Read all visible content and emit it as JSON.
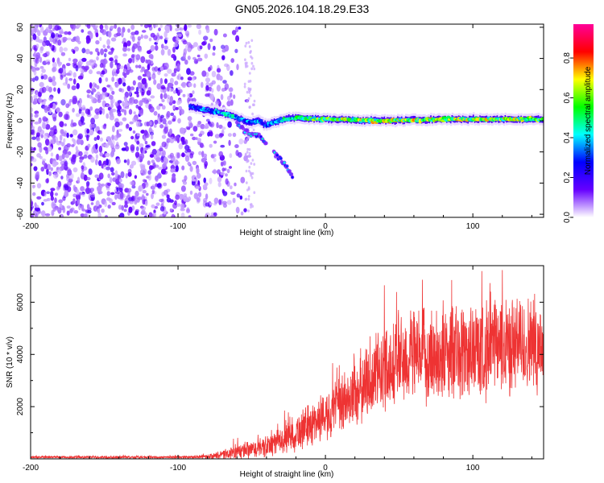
{
  "title": "GN05.2026.104.18.29.E33",
  "chart_data": [
    {
      "type": "heatmap",
      "name": "spectrogram",
      "xlabel": "Height of straight line (km)",
      "ylabel": "Frequency (Hz)",
      "xlim": [
        -200,
        148
      ],
      "ylim": [
        -62,
        62
      ],
      "xticks": [
        -200,
        -100,
        0,
        100
      ],
      "yticks": [
        -60,
        -40,
        -20,
        0,
        20,
        40,
        60
      ],
      "colorbar": {
        "label": "Normalized spectral amplitude",
        "range": [
          0,
          0.97
        ],
        "ticks": [
          0.0,
          0.2,
          0.4,
          0.6,
          0.8
        ],
        "colors": [
          "#ffffff",
          "#6600ff",
          "#0000ff",
          "#00ffff",
          "#00ff00",
          "#ffff00",
          "#ff0000",
          "#ff0099"
        ]
      },
      "regions": [
        {
          "desc": "broadband noise",
          "x": [
            -200,
            -75
          ],
          "y": [
            -60,
            60
          ],
          "amplitude": 0.15
        },
        {
          "desc": "isolated points",
          "x": [
            -55,
            -48
          ],
          "y": [
            -60,
            55
          ],
          "amplitude": 0.05
        }
      ],
      "track": {
        "x": [
          -92,
          -80,
          -70,
          -60,
          -52,
          -45,
          -40,
          -35,
          -28,
          -20,
          0,
          40,
          80,
          120,
          148
        ],
        "y": [
          9,
          7,
          5,
          2,
          -1,
          0,
          -3,
          -1,
          1,
          2,
          1,
          0,
          1,
          1,
          1
        ],
        "amplitude": [
          0.35,
          0.4,
          0.45,
          0.45,
          0.4,
          0.4,
          0.4,
          0.45,
          0.5,
          0.55,
          0.65,
          0.7,
          0.72,
          0.7,
          0.68
        ]
      },
      "branches": [
        {
          "x": [
            -60,
            -52,
            -45,
            -40
          ],
          "y": [
            -2,
            -8,
            -10,
            -14
          ]
        },
        {
          "x": [
            -35,
            -28,
            -22
          ],
          "y": [
            -20,
            -27,
            -36
          ]
        }
      ]
    },
    {
      "type": "line",
      "name": "snr",
      "xlabel": "Height of straight line (km)",
      "ylabel": "SNR (10 * v/v)",
      "xlim": [
        -200,
        148
      ],
      "ylim": [
        0,
        7400
      ],
      "xticks": [
        -200,
        -100,
        0,
        100
      ],
      "yticks": [
        2000,
        4000,
        6000
      ],
      "color": "#ee3333",
      "envelope": {
        "x": [
          -200,
          -90,
          -80,
          -70,
          -60,
          -50,
          -40,
          -30,
          -20,
          -10,
          0,
          10,
          20,
          30,
          40,
          50,
          60,
          80,
          100,
          120,
          148
        ],
        "mean": [
          60,
          70,
          90,
          150,
          250,
          350,
          450,
          700,
          1000,
          1300,
          1700,
          2000,
          2500,
          3000,
          3500,
          3800,
          3900,
          4000,
          4100,
          4300,
          4400
        ],
        "spread": [
          50,
          50,
          80,
          160,
          300,
          350,
          400,
          500,
          700,
          800,
          900,
          1100,
          1300,
          1400,
          1600,
          1700,
          1700,
          1800,
          1800,
          1800,
          1800
        ]
      }
    }
  ]
}
